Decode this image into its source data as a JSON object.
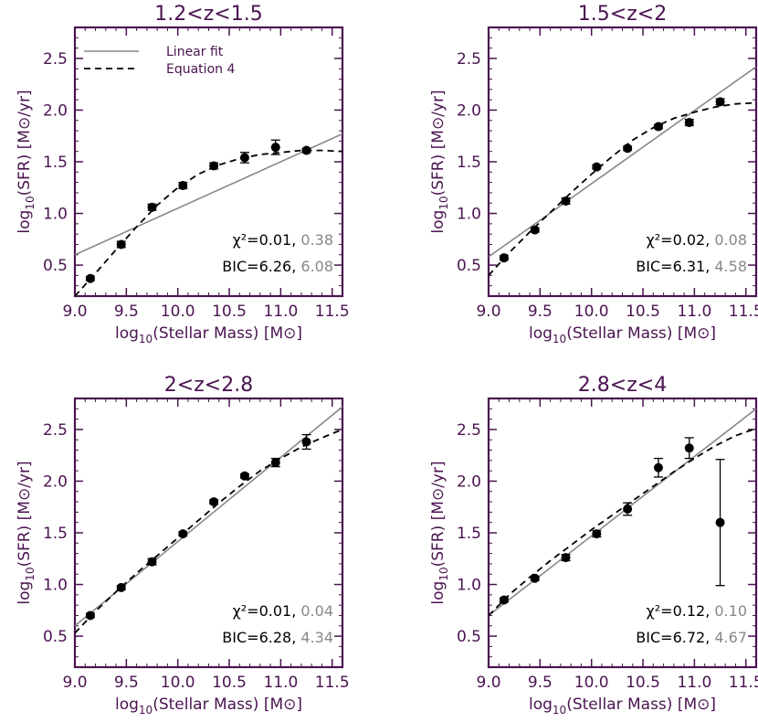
{
  "colors": {
    "axis": "#4a1450",
    "linear_fit": "#888888",
    "equation": "#000000",
    "points": "#000000",
    "stat_main": "#000000",
    "stat_alt": "#888888"
  },
  "legend": {
    "linear_fit_label": "Linear fit",
    "equation_label": "Equation 4"
  },
  "axis_labels": {
    "x": "log10(Stellar Mass) [M⊙]",
    "y": "log10(SFR) [M⊙/yr]"
  },
  "chart_data": [
    {
      "type": "scatter",
      "title": "1.2<z<1.5",
      "xlim": [
        9.0,
        11.6
      ],
      "ylim": [
        0.2,
        2.8
      ],
      "xticks": [
        "9.0",
        "9.5",
        "10.0",
        "10.5",
        "11.0",
        "11.5"
      ],
      "yticks": [
        "0.5",
        "1.0",
        "1.5",
        "2.0",
        "2.5"
      ],
      "points": {
        "x": [
          9.15,
          9.45,
          9.75,
          10.05,
          10.35,
          10.65,
          10.95,
          11.25
        ],
        "y": [
          0.37,
          0.7,
          1.06,
          1.27,
          1.46,
          1.54,
          1.64,
          1.61
        ],
        "err": [
          0.02,
          0.03,
          0.03,
          0.03,
          0.03,
          0.05,
          0.07,
          0.02
        ]
      },
      "linear_fit": {
        "x": [
          9.0,
          11.6
        ],
        "y": [
          0.6,
          1.77
        ]
      },
      "equation_curve": {
        "x": [
          9.0,
          9.2,
          9.4,
          9.6,
          9.8,
          10.0,
          10.2,
          10.4,
          10.6,
          10.8,
          11.0,
          11.2,
          11.4,
          11.6
        ],
        "y": [
          0.2,
          0.42,
          0.65,
          0.87,
          1.08,
          1.25,
          1.38,
          1.47,
          1.53,
          1.57,
          1.59,
          1.61,
          1.61,
          1.6
        ]
      },
      "stats": {
        "chi2_label": "χ²=0.01,",
        "chi2_alt": "0.38",
        "bic_label": "BIC=6.26,",
        "bic_alt": "6.08"
      },
      "show_legend": true
    },
    {
      "type": "scatter",
      "title": "1.5<z<2",
      "xlim": [
        9.0,
        11.6
      ],
      "ylim": [
        0.2,
        2.8
      ],
      "xticks": [
        "9.0",
        "9.5",
        "10.0",
        "10.5",
        "11.0",
        "11.5"
      ],
      "yticks": [
        "0.5",
        "1.0",
        "1.5",
        "2.0",
        "2.5"
      ],
      "points": {
        "x": [
          9.15,
          9.45,
          9.75,
          10.05,
          10.35,
          10.65,
          10.95,
          11.25
        ],
        "y": [
          0.57,
          0.84,
          1.12,
          1.45,
          1.63,
          1.84,
          1.88,
          2.08
        ],
        "err": [
          0.02,
          0.02,
          0.03,
          0.02,
          0.02,
          0.02,
          0.03,
          0.03
        ]
      },
      "linear_fit": {
        "x": [
          9.0,
          11.6
        ],
        "y": [
          0.58,
          2.42
        ]
      },
      "equation_curve": {
        "x": [
          9.0,
          9.2,
          9.4,
          9.6,
          9.8,
          10.0,
          10.2,
          10.4,
          10.6,
          10.8,
          11.0,
          11.2,
          11.4,
          11.6
        ],
        "y": [
          0.4,
          0.62,
          0.82,
          1.01,
          1.2,
          1.38,
          1.55,
          1.71,
          1.83,
          1.92,
          1.98,
          2.03,
          2.06,
          2.07
        ]
      },
      "stats": {
        "chi2_label": "χ²=0.02,",
        "chi2_alt": "0.08",
        "bic_label": "BIC=6.31,",
        "bic_alt": "4.58"
      },
      "show_legend": false
    },
    {
      "type": "scatter",
      "title": "2<z<2.8",
      "xlim": [
        9.0,
        11.6
      ],
      "ylim": [
        0.2,
        2.8
      ],
      "xticks": [
        "9.0",
        "9.5",
        "10.0",
        "10.5",
        "11.0",
        "11.5"
      ],
      "yticks": [
        "0.5",
        "1.0",
        "1.5",
        "2.0",
        "2.5"
      ],
      "points": {
        "x": [
          9.15,
          9.45,
          9.75,
          10.05,
          10.35,
          10.65,
          10.95,
          11.25
        ],
        "y": [
          0.7,
          0.97,
          1.22,
          1.49,
          1.8,
          2.05,
          2.18,
          2.38
        ],
        "err": [
          0.02,
          0.02,
          0.03,
          0.02,
          0.02,
          0.02,
          0.04,
          0.07
        ]
      },
      "linear_fit": {
        "x": [
          9.0,
          11.6
        ],
        "y": [
          0.6,
          2.72
        ]
      },
      "equation_curve": {
        "x": [
          9.0,
          9.2,
          9.4,
          9.6,
          9.8,
          10.0,
          10.2,
          10.4,
          10.6,
          10.8,
          11.0,
          11.2,
          11.4,
          11.6
        ],
        "y": [
          0.53,
          0.74,
          0.93,
          1.11,
          1.28,
          1.45,
          1.62,
          1.79,
          1.95,
          2.1,
          2.22,
          2.33,
          2.42,
          2.5
        ]
      },
      "stats": {
        "chi2_label": "χ²=0.01,",
        "chi2_alt": "0.04",
        "bic_label": "BIC=6.28,",
        "bic_alt": "4.34"
      },
      "show_legend": false
    },
    {
      "type": "scatter",
      "title": "2.8<z<4",
      "xlim": [
        9.0,
        11.6
      ],
      "ylim": [
        0.2,
        2.8
      ],
      "xticks": [
        "9.0",
        "9.5",
        "10.0",
        "10.5",
        "11.0",
        "11.5"
      ],
      "yticks": [
        "0.5",
        "1.0",
        "1.5",
        "2.0",
        "2.5"
      ],
      "points": {
        "x": [
          9.15,
          9.45,
          9.75,
          10.05,
          10.35,
          10.65,
          10.95,
          11.25
        ],
        "y": [
          0.85,
          1.06,
          1.26,
          1.49,
          1.73,
          2.13,
          2.32,
          1.6
        ],
        "err": [
          0.02,
          0.02,
          0.03,
          0.03,
          0.06,
          0.09,
          0.1,
          0.61
        ]
      },
      "linear_fit": {
        "x": [
          9.0,
          11.6
        ],
        "y": [
          0.7,
          2.7
        ]
      },
      "equation_curve": {
        "x": [
          9.0,
          9.2,
          9.4,
          9.6,
          9.8,
          10.0,
          10.2,
          10.4,
          10.6,
          10.8,
          11.0,
          11.2,
          11.4,
          11.6
        ],
        "y": [
          0.7,
          0.9,
          1.07,
          1.23,
          1.38,
          1.53,
          1.67,
          1.81,
          1.95,
          2.09,
          2.22,
          2.34,
          2.44,
          2.51
        ]
      },
      "stats": {
        "chi2_label": "χ²=0.12,",
        "chi2_alt": "0.10",
        "bic_label": "BIC=6.72,",
        "bic_alt": "4.67"
      },
      "show_legend": false
    }
  ]
}
